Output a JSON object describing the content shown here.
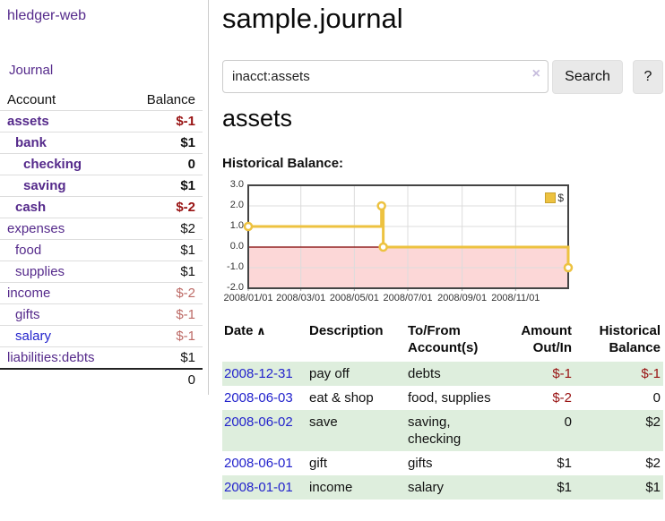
{
  "colors": {
    "link_purple": "#552a8b",
    "link_blue": "#2323cc",
    "negative_strong": "#981212",
    "negative_muted": "#bd6a66",
    "row_green": "#deeedd",
    "chart_gold": "#edc240",
    "chart_gold_dark": "#c9a22e",
    "chart_negative_bg": "#fcd7d7",
    "chart_zero_line": "#7f0000",
    "chart_border": "#444444",
    "chart_grid": "#dcdcdc",
    "divider": "#cccccc",
    "row_border": "#dddddd",
    "total_border": "#222222",
    "button_bg": "#e9e9e9",
    "input_border": "#cccccc",
    "clear_icon": "#c7bddd"
  },
  "app": {
    "brand": "hledger-web"
  },
  "sidebar": {
    "journal_link": "Journal",
    "headers": {
      "account": "Account",
      "balance": "Balance"
    },
    "accounts": [
      {
        "name": "assets",
        "balance": "$-1",
        "level": 1,
        "bold": true,
        "balance_class": "neg-strong"
      },
      {
        "name": "bank",
        "balance": "$1",
        "level": 2,
        "bold": true,
        "balance_class": ""
      },
      {
        "name": "checking",
        "balance": "0",
        "level": 3,
        "bold": true,
        "balance_class": ""
      },
      {
        "name": "saving",
        "balance": "$1",
        "level": 3,
        "bold": true,
        "balance_class": ""
      },
      {
        "name": "cash",
        "balance": "$-2",
        "level": 2,
        "bold": true,
        "balance_class": "neg-strong"
      },
      {
        "name": "expenses",
        "balance": "$2",
        "level": 1,
        "bold": false,
        "balance_class": ""
      },
      {
        "name": "food",
        "balance": "$1",
        "level": 2,
        "bold": false,
        "balance_class": ""
      },
      {
        "name": "supplies",
        "balance": "$1",
        "level": 2,
        "bold": false,
        "balance_class": ""
      },
      {
        "name": "income",
        "balance": "$-2",
        "level": 1,
        "bold": false,
        "balance_class": "neg-muted"
      },
      {
        "name": "gifts",
        "balance": "$-1",
        "level": 2,
        "bold": false,
        "balance_class": "neg-muted"
      },
      {
        "name": "salary",
        "balance": "$-1",
        "level": 2,
        "bold": false,
        "balance_class": "neg-muted",
        "link_color": "blue"
      },
      {
        "name": "liabilities:debts",
        "balance": "$1",
        "level": 1,
        "bold": false,
        "balance_class": ""
      }
    ],
    "total": "0"
  },
  "main": {
    "title": "sample.journal",
    "search": {
      "value": "inacct:assets",
      "clear_icon": "×",
      "button_label": "Search",
      "help_label": "?"
    },
    "account_heading": "assets",
    "chart_title": "Historical Balance:"
  },
  "chart_data": {
    "type": "line",
    "mode": "steps",
    "title": "Historical Balance",
    "legend": {
      "label": "$",
      "position": "top-right"
    },
    "x_start": "2008-01-01",
    "x_end": "2008-12-31",
    "x_ticks": [
      {
        "date": "2008-01-01",
        "label": "2008/01/01"
      },
      {
        "date": "2008-03-01",
        "label": "2008/03/01"
      },
      {
        "date": "2008-05-01",
        "label": "2008/05/01"
      },
      {
        "date": "2008-07-01",
        "label": "2008/07/01"
      },
      {
        "date": "2008-09-01",
        "label": "2008/09/01"
      },
      {
        "date": "2008-11-01",
        "label": "2008/11/01"
      }
    ],
    "y_ticks": [
      {
        "value": 3,
        "label": "3.0"
      },
      {
        "value": 2,
        "label": "2.0"
      },
      {
        "value": 1,
        "label": "1.0"
      },
      {
        "value": 0,
        "label": "0.0"
      },
      {
        "value": -1,
        "label": "-1.0"
      },
      {
        "value": -2,
        "label": "-2.0"
      }
    ],
    "ylim": [
      -2,
      3
    ],
    "grid": true,
    "negative_region": true,
    "series": [
      {
        "name": "$",
        "points": [
          {
            "date": "2008-01-01",
            "value": 1
          },
          {
            "date": "2008-06-01",
            "value": 2
          },
          {
            "date": "2008-06-03",
            "value": 0
          },
          {
            "date": "2008-12-31",
            "value": -1
          }
        ]
      }
    ]
  },
  "register": {
    "sort_icon": "∧",
    "columns": [
      {
        "lines": [
          "Date"
        ],
        "align": "left",
        "sortable": true
      },
      {
        "lines": [
          "Description"
        ],
        "align": "left"
      },
      {
        "lines": [
          "To/From",
          "Account(s)"
        ],
        "align": "left"
      },
      {
        "lines": [
          "Amount",
          "Out/In"
        ],
        "align": "right"
      },
      {
        "lines": [
          "Historical",
          "Balance"
        ],
        "align": "right"
      }
    ],
    "rows": [
      {
        "date": "2008-12-31",
        "description": "pay off",
        "accounts": [
          "debts"
        ],
        "amount": "$-1",
        "amount_negative": true,
        "balance": "$-1",
        "balance_negative": true
      },
      {
        "date": "2008-06-03",
        "description": "eat & shop",
        "accounts": [
          "food, supplies"
        ],
        "amount": "$-2",
        "amount_negative": true,
        "balance": "0",
        "balance_negative": false
      },
      {
        "date": "2008-06-02",
        "description": "save",
        "accounts": [
          "saving,",
          "checking"
        ],
        "amount": "0",
        "amount_negative": false,
        "balance": "$2",
        "balance_negative": false
      },
      {
        "date": "2008-06-01",
        "description": "gift",
        "accounts": [
          "gifts"
        ],
        "amount": "$1",
        "amount_negative": false,
        "balance": "$2",
        "balance_negative": false
      },
      {
        "date": "2008-01-01",
        "description": "income",
        "accounts": [
          "salary"
        ],
        "amount": "$1",
        "amount_negative": false,
        "balance": "$1",
        "balance_negative": false
      }
    ]
  }
}
